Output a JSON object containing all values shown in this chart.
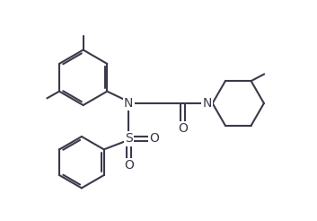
{
  "line_color": "#3a3a4a",
  "bg_color": "#ffffff",
  "lw": 1.5,
  "figsize": [
    3.53,
    2.46
  ],
  "dpi": 100,
  "xlim": [
    0,
    10
  ],
  "ylim": [
    0,
    7
  ]
}
